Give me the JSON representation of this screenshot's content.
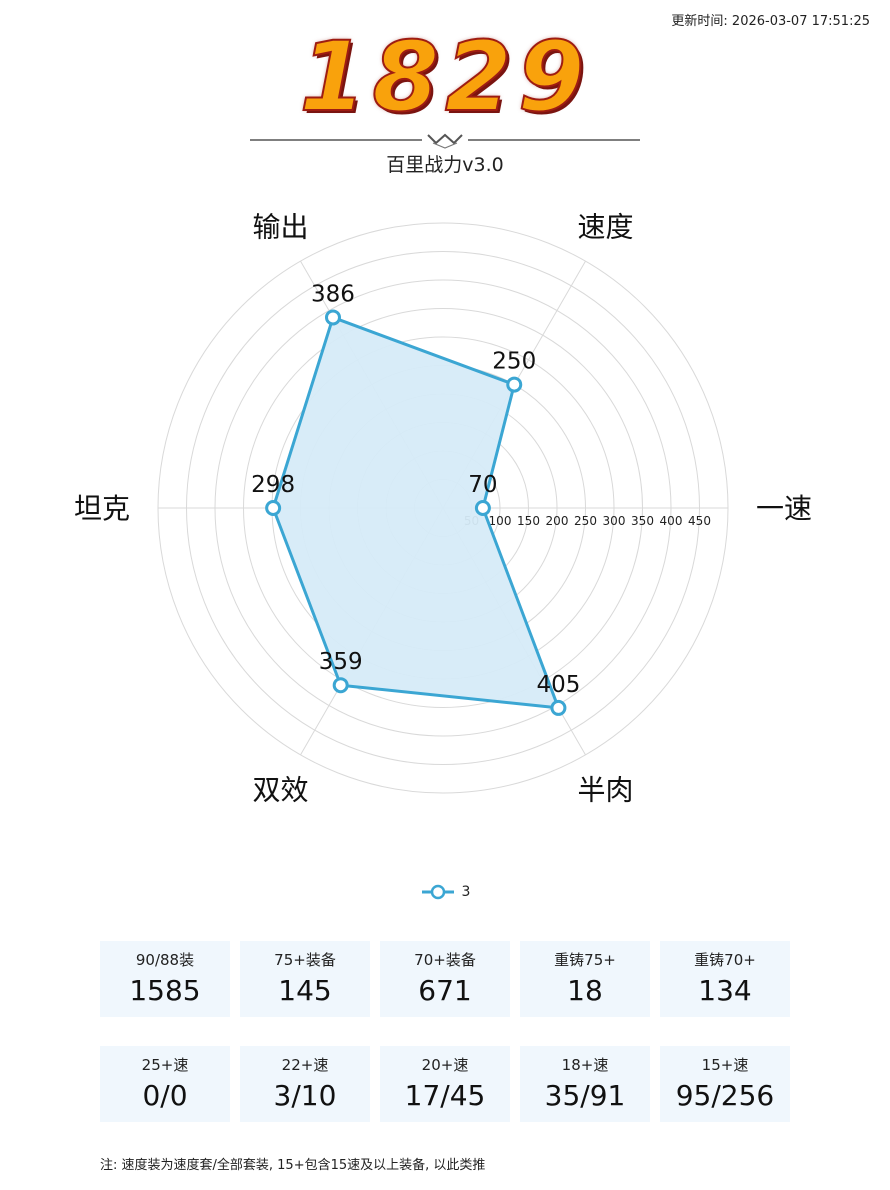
{
  "header": {
    "update_time": "更新时间: 2026-03-07 17:51:25",
    "score": "1829",
    "subtitle": "百里战力v3.0"
  },
  "chart_data": {
    "type": "radar",
    "axes": [
      "一速",
      "速度",
      "输出",
      "坦克",
      "双效",
      "半肉"
    ],
    "ticks": [
      50,
      100,
      150,
      200,
      250,
      300,
      350,
      400,
      450
    ],
    "range": [
      0,
      500
    ],
    "series": [
      {
        "name": "3",
        "values": [
          70,
          250,
          386,
          298,
          359,
          405
        ]
      }
    ],
    "colors": {
      "line": "#3ba6d3",
      "fill": "#d6ebf8",
      "grid": "#d9d9d9"
    },
    "legend_position": "bottom-center"
  },
  "stats_row1": [
    {
      "label": "90/88装",
      "value": "1585"
    },
    {
      "label": "75+装备",
      "value": "145"
    },
    {
      "label": "70+装备",
      "value": "671"
    },
    {
      "label": "重铸75+",
      "value": "18"
    },
    {
      "label": "重铸70+",
      "value": "134"
    }
  ],
  "stats_row2": [
    {
      "label": "25+速",
      "value": "0/0"
    },
    {
      "label": "22+速",
      "value": "3/10"
    },
    {
      "label": "20+速",
      "value": "17/45"
    },
    {
      "label": "18+速",
      "value": "35/91"
    },
    {
      "label": "15+速",
      "value": "95/256"
    }
  ],
  "footnote": "注: 速度装为速度套/全部套装, 15+包含15速及以上装备, 以此类推"
}
